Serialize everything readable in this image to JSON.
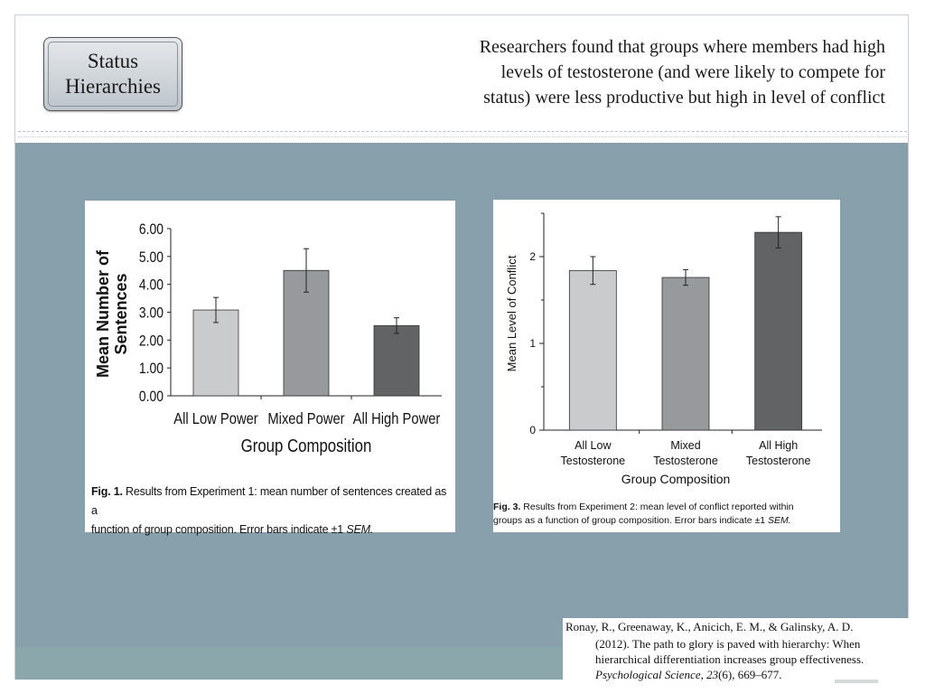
{
  "slide": {
    "title": "Status Hierarchies",
    "title_lines": [
      "Status",
      "Hierarchies"
    ],
    "intro_lines": [
      "Researchers found that groups where members had high",
      "levels of testosterone (and were likely to compete for",
      "status) were less productive but high in level of conflict"
    ]
  },
  "colors": {
    "panel": "#87a0ab",
    "bar_light": "#c9cbcd",
    "bar_mid": "#98999c",
    "bar_dark": "#616364"
  },
  "chart_data": [
    {
      "type": "bar",
      "categories": [
        "All Low Power",
        "Mixed Power",
        "All High Power"
      ],
      "values": [
        3.08,
        4.5,
        2.52
      ],
      "errors": [
        0.45,
        0.78,
        0.28
      ],
      "bar_colors": [
        "#c9cbcd",
        "#98999c",
        "#616364"
      ],
      "ylim": [
        0,
        6
      ],
      "yticks": [
        "0.00",
        "1.00",
        "2.00",
        "3.00",
        "4.00",
        "5.00",
        "6.00"
      ],
      "xlabel": "Group Composition",
      "ylabel_lines": [
        "Mean Number of",
        "Sentences"
      ],
      "caption_label": "Fig. 1.",
      "caption_text": "Results from Experiment 1: mean number of sentences created as a",
      "caption_line2": "function of group composition. Error bars indicate ±1",
      "caption_sem": "SEM."
    },
    {
      "type": "bar",
      "categories": [
        "All Low",
        "Mixed",
        "All High"
      ],
      "categories_line2": [
        "Testosterone",
        "Testosterone",
        "Testosterone"
      ],
      "values": [
        1.84,
        1.76,
        2.28
      ],
      "errors": [
        0.16,
        0.09,
        0.18
      ],
      "bar_colors": [
        "#c9cbcd",
        "#98999c",
        "#616364"
      ],
      "ylim": [
        0,
        2.5
      ],
      "yticks": [
        "0",
        "1",
        "2"
      ],
      "xlabel": "Group Composition",
      "ylabel": "Mean Level of Conflict",
      "caption_label": "Fig. 3.",
      "caption_text": "Results from Experiment 2: mean level of conflict reported within",
      "caption_line2": "groups as a function of group composition. Error bars indicate ±1",
      "caption_sem": "SEM."
    }
  ],
  "citation": {
    "line1": "Ronay, R., Greenaway, K., Anicich, E. M., & Galinsky, A. D.",
    "line2": "(2012). The path to glory is paved with hierarchy: When",
    "line3": "hierarchical differentiation increases group effectiveness.",
    "journal": "Psychological Science, 23",
    "issue_pages": "(6), 669–677."
  }
}
